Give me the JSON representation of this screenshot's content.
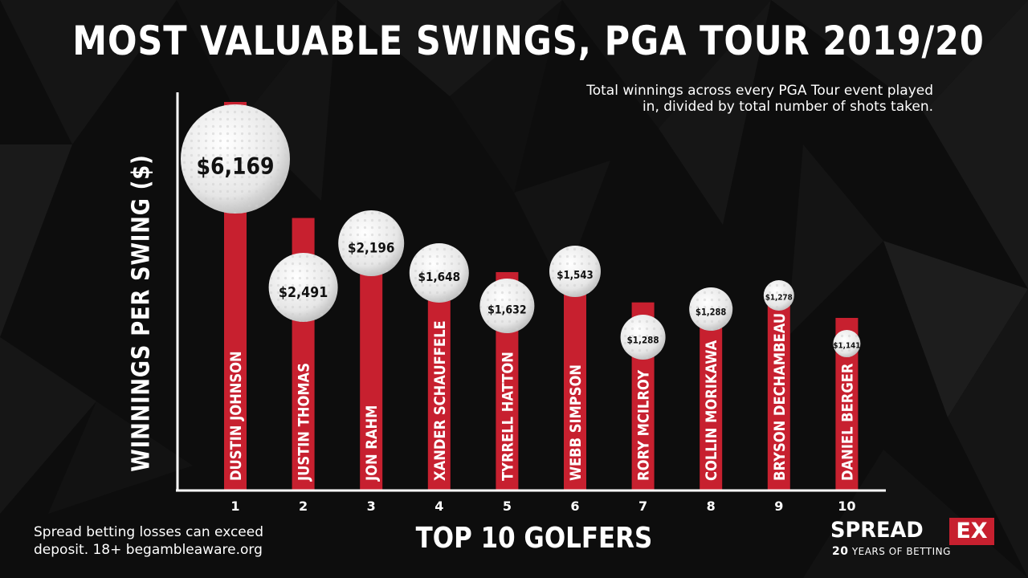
{
  "chart_data": {
    "type": "bar",
    "title": "MOST VALUABLE SWINGS, PGA TOUR 2019/20",
    "subtitle": "Total winnings across every PGA Tour event played in, divided by total number of shots taken.",
    "ylabel": "WINNINGS PER SWING ($)",
    "xlabel": "TOP 10 GOLFERS",
    "categories": [
      "1",
      "2",
      "3",
      "4",
      "5",
      "6",
      "7",
      "8",
      "9",
      "10"
    ],
    "golfers": [
      "DUSTIN JOHNSON",
      "JUSTIN THOMAS",
      "JON RAHM",
      "XANDER SCHAUFFELE",
      "TYRRELL HATTON",
      "WEBB SIMPSON",
      "RORY MCILROY",
      "COLLIN MORIKAWA",
      "BRYSON DECHAMBEAU",
      "DANIEL BERGER"
    ],
    "values": [
      6169,
      2491,
      2196,
      1648,
      1632,
      1543,
      1288,
      1288,
      1278,
      1141
    ],
    "value_labels": [
      "$6,169",
      "$2,491",
      "$2,196",
      "$1,648",
      "$1,632",
      "$1,543",
      "$1,288",
      "$1,288",
      "$1,278",
      "$1,141"
    ],
    "legend": "none",
    "grid": false,
    "colors": {
      "bar": "#c7202f",
      "ball": "#f2f2f2",
      "axis": "#ffffff",
      "background": "#0d0d0d"
    }
  },
  "footer": {
    "disclaimer": "Spread betting losses can exceed deposit. 18+ begambleaware.org"
  },
  "logo": {
    "brand_main": "SPREAD",
    "brand_accent": "EX",
    "tag_number": "20",
    "tag_text": "YEARS OF BETTING"
  }
}
